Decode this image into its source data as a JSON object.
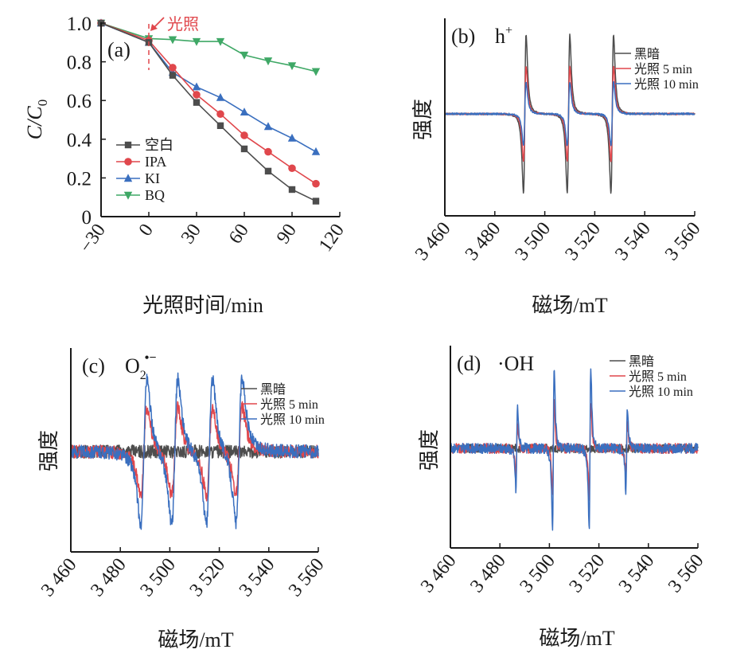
{
  "chart_data": [
    {
      "id": "a",
      "type": "line",
      "panel_label": "(a)",
      "xlabel": "光照时间/min",
      "ylabel_main": "C/C",
      "ylabel_sub": "0",
      "xlim": [
        -30,
        120
      ],
      "ylim": [
        0,
        1.0
      ],
      "xticks": [
        -30,
        0,
        30,
        60,
        90,
        120
      ],
      "xtick_labels": [
        "−30",
        "0",
        "30",
        "60",
        "90",
        "120"
      ],
      "yticks": [
        0,
        0.2,
        0.4,
        0.6,
        0.8,
        1.0
      ],
      "ytick_labels": [
        "0",
        "0.2",
        "0.4",
        "0.6",
        "0.8",
        "1.0"
      ],
      "x": [
        -30,
        0,
        15,
        30,
        45,
        60,
        75,
        90,
        105
      ],
      "series": [
        {
          "name": "空白",
          "color": "#4d4d4d",
          "marker": "square",
          "values": [
            1.0,
            0.9,
            0.73,
            0.59,
            0.47,
            0.35,
            0.235,
            0.14,
            0.08
          ]
        },
        {
          "name": "IPA",
          "color": "#e0474c",
          "marker": "circle",
          "values": [
            1.0,
            0.91,
            0.77,
            0.63,
            0.53,
            0.42,
            0.335,
            0.25,
            0.17
          ]
        },
        {
          "name": "KI",
          "color": "#3a6fbf",
          "marker": "triangle-up",
          "values": [
            1.0,
            0.9,
            0.745,
            0.67,
            0.615,
            0.54,
            0.465,
            0.405,
            0.335
          ]
        },
        {
          "name": "BQ",
          "color": "#3fa866",
          "marker": "triangle-down",
          "values": [
            1.0,
            0.92,
            0.915,
            0.905,
            0.905,
            0.835,
            0.805,
            0.78,
            0.75
          ]
        }
      ],
      "annotation": {
        "text": "光照",
        "x": 0,
        "color": "#e0474c"
      },
      "legend_position": "lower-left"
    },
    {
      "id": "b",
      "type": "line",
      "panel_label": "(b)",
      "species": "h",
      "species_sup": "+",
      "xlabel": "磁场/mT",
      "ylabel": "强度",
      "xlim": [
        3460,
        3560
      ],
      "xticks": [
        3460,
        3480,
        3500,
        3520,
        3540,
        3560
      ],
      "xtick_labels": [
        "3 460",
        "3 480",
        "3 500",
        "3 520",
        "3 540",
        "3 560"
      ],
      "yticks_shown": false,
      "peak_centers": [
        3492.0,
        3509.5,
        3527.0
      ],
      "peak_width": 0.9,
      "series": [
        {
          "name": "黑暗",
          "color": "#4d4d4d",
          "relative_amplitude": 1.0,
          "noise": 0.01
        },
        {
          "name": "光照 5 min",
          "color": "#e0474c",
          "relative_amplitude": 0.6,
          "noise": 0.01
        },
        {
          "name": "光照 10 min",
          "color": "#3a6fbf",
          "relative_amplitude": 0.4,
          "noise": 0.012
        }
      ],
      "legend_position": "top-right"
    },
    {
      "id": "c",
      "type": "line",
      "panel_label": "(c)",
      "species": "O",
      "species_sub": "2",
      "species_sup": "•−",
      "xlabel": "磁场/mT",
      "ylabel": "强度",
      "xlim": [
        3460,
        3560
      ],
      "xticks": [
        3460,
        3480,
        3500,
        3520,
        3540,
        3560
      ],
      "xtick_labels": [
        "3 460",
        "3 480",
        "3 500",
        "3 520",
        "3 540",
        "3 560"
      ],
      "yticks_shown": false,
      "peak_centers": [
        3489.5,
        3502.0,
        3516.0,
        3528.0
      ],
      "peak_width": 2.2,
      "series": [
        {
          "name": "黑暗",
          "color": "#4d4d4d",
          "relative_amplitude": 0.0,
          "noise": 0.09
        },
        {
          "name": "光照 5 min",
          "color": "#e0474c",
          "relative_amplitude": 0.6,
          "noise": 0.09
        },
        {
          "name": "光照 10 min",
          "color": "#3a6fbf",
          "relative_amplitude": 1.0,
          "noise": 0.09
        }
      ],
      "legend_position": "top-right"
    },
    {
      "id": "d",
      "type": "line",
      "panel_label": "(d)",
      "species": "·OH",
      "xlabel": "磁场/mT",
      "ylabel": "强度",
      "xlim": [
        3460,
        3560
      ],
      "xticks": [
        3460,
        3480,
        3500,
        3520,
        3540,
        3560
      ],
      "xtick_labels": [
        "3 460",
        "3 480",
        "3 500",
        "3 520",
        "3 540",
        "3 560"
      ],
      "yticks_shown": false,
      "peak_centers": [
        3486.8,
        3501.6,
        3516.4,
        3531.2
      ],
      "peak_relative_heights": [
        0.5,
        1.0,
        1.0,
        0.5
      ],
      "peak_width": 0.55,
      "series": [
        {
          "name": "黑暗",
          "color": "#4d4d4d",
          "relative_amplitude": 0.0,
          "noise": 0.05
        },
        {
          "name": "光照 5 min",
          "color": "#e0474c",
          "relative_amplitude": 0.58,
          "noise": 0.06
        },
        {
          "name": "光照 10 min",
          "color": "#3a6fbf",
          "relative_amplitude": 1.0,
          "noise": 0.06
        }
      ],
      "legend_position": "top-right"
    }
  ]
}
